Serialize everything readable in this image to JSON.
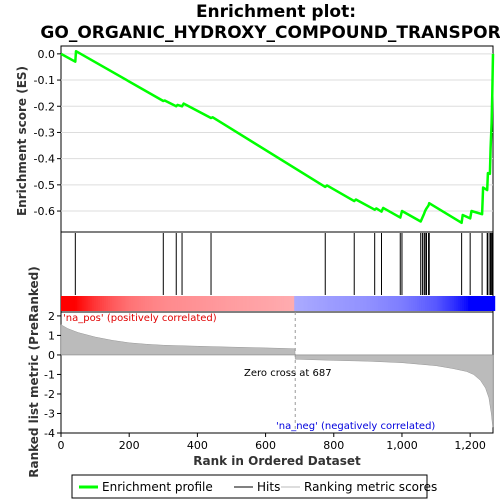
{
  "chart_data": {
    "type": "line",
    "title_lines": [
      "Enrichment plot:",
      "GO_ORGANIC_HYDROXY_COMPOUND_TRANSPORT"
    ],
    "xlabel": "Rank in Ordered Dataset",
    "es_panel": {
      "ylabel": "Enrichment score (ES)",
      "ylim": [
        -0.68,
        0.03
      ],
      "yticks": [
        0.0,
        -0.1,
        -0.2,
        -0.3,
        -0.4,
        -0.5,
        -0.6
      ],
      "ytick_labels": [
        "0.0",
        "-0.1",
        "-0.2",
        "-0.3",
        "-0.4",
        "-0.5",
        "-0.6"
      ],
      "line_color": "#00ff00",
      "points": [
        [
          0,
          0.0
        ],
        [
          42,
          -0.03
        ],
        [
          44,
          0.01
        ],
        [
          300,
          -0.18
        ],
        [
          304,
          -0.178
        ],
        [
          338,
          -0.2
        ],
        [
          342,
          -0.195
        ],
        [
          355,
          -0.2
        ],
        [
          360,
          -0.19
        ],
        [
          440,
          -0.245
        ],
        [
          445,
          -0.242
        ],
        [
          775,
          -0.508
        ],
        [
          780,
          -0.502
        ],
        [
          860,
          -0.562
        ],
        [
          865,
          -0.556
        ],
        [
          920,
          -0.595
        ],
        [
          925,
          -0.59
        ],
        [
          940,
          -0.602
        ],
        [
          945,
          -0.588
        ],
        [
          995,
          -0.625
        ],
        [
          1000,
          -0.6
        ],
        [
          1055,
          -0.64
        ],
        [
          1060,
          -0.625
        ],
        [
          1065,
          -0.61
        ],
        [
          1068,
          -0.6
        ],
        [
          1072,
          -0.59
        ],
        [
          1078,
          -0.578
        ],
        [
          1080,
          -0.57
        ],
        [
          1175,
          -0.645
        ],
        [
          1178,
          -0.615
        ],
        [
          1200,
          -0.628
        ],
        [
          1204,
          -0.6
        ],
        [
          1235,
          -0.612
        ],
        [
          1238,
          -0.51
        ],
        [
          1250,
          -0.52
        ],
        [
          1252,
          -0.455
        ],
        [
          1258,
          -0.458
        ],
        [
          1260,
          -0.36
        ],
        [
          1263,
          -0.265
        ],
        [
          1265,
          -0.15
        ],
        [
          1266,
          -0.06
        ],
        [
          1267,
          0.0
        ]
      ]
    },
    "hits": [
      42,
      300,
      338,
      355,
      440,
      775,
      860,
      920,
      940,
      995,
      1000,
      1055,
      1060,
      1065,
      1068,
      1072,
      1078,
      1080,
      1175,
      1200,
      1235,
      1250,
      1252,
      1258,
      1260,
      1263,
      1265
    ],
    "ranked_metric_panel": {
      "ylabel": "Ranked list metric (PreRanked)",
      "ylim": [
        -4,
        2.2
      ],
      "yticks": [
        2,
        1,
        0,
        -1,
        -2,
        -3,
        -4
      ],
      "ytick_labels": [
        "2",
        "1",
        "0",
        "-1",
        "-2",
        "-3",
        "-4"
      ],
      "profile": [
        [
          0,
          1.55
        ],
        [
          20,
          1.35
        ],
        [
          50,
          1.15
        ],
        [
          100,
          0.92
        ],
        [
          150,
          0.75
        ],
        [
          200,
          0.62
        ],
        [
          250,
          0.55
        ],
        [
          300,
          0.5
        ],
        [
          400,
          0.45
        ],
        [
          500,
          0.4
        ],
        [
          600,
          0.36
        ],
        [
          686,
          0.32
        ],
        [
          687,
          -0.22
        ],
        [
          800,
          -0.28
        ],
        [
          900,
          -0.32
        ],
        [
          1000,
          -0.4
        ],
        [
          1100,
          -0.55
        ],
        [
          1150,
          -0.7
        ],
        [
          1190,
          -0.85
        ],
        [
          1210,
          -1.0
        ],
        [
          1230,
          -1.3
        ],
        [
          1245,
          -1.7
        ],
        [
          1255,
          -2.2
        ],
        [
          1262,
          -3.0
        ],
        [
          1266,
          -3.7
        ],
        [
          1267,
          -3.7
        ]
      ],
      "zero_cross": 687,
      "zero_cross_label": "Zero cross at 687",
      "pos_label": "'na_pos' (positively correlated)",
      "neg_label": "'na_neg' (negatively correlated)",
      "pos_color": "#ff0000",
      "neg_color": "#0000ff"
    },
    "xlim": [
      0,
      1267
    ],
    "xticks": [
      0,
      200,
      400,
      600,
      800,
      1000,
      1200
    ],
    "xtick_labels": [
      "0",
      "200",
      "400",
      "600",
      "800",
      "1,000",
      "1,200"
    ],
    "legend": [
      {
        "label": "Enrichment profile",
        "color": "#00ff00"
      },
      {
        "label": "Hits",
        "color": "#000000"
      },
      {
        "label": "Ranking metric scores",
        "color": "#bbbbbb"
      }
    ]
  }
}
